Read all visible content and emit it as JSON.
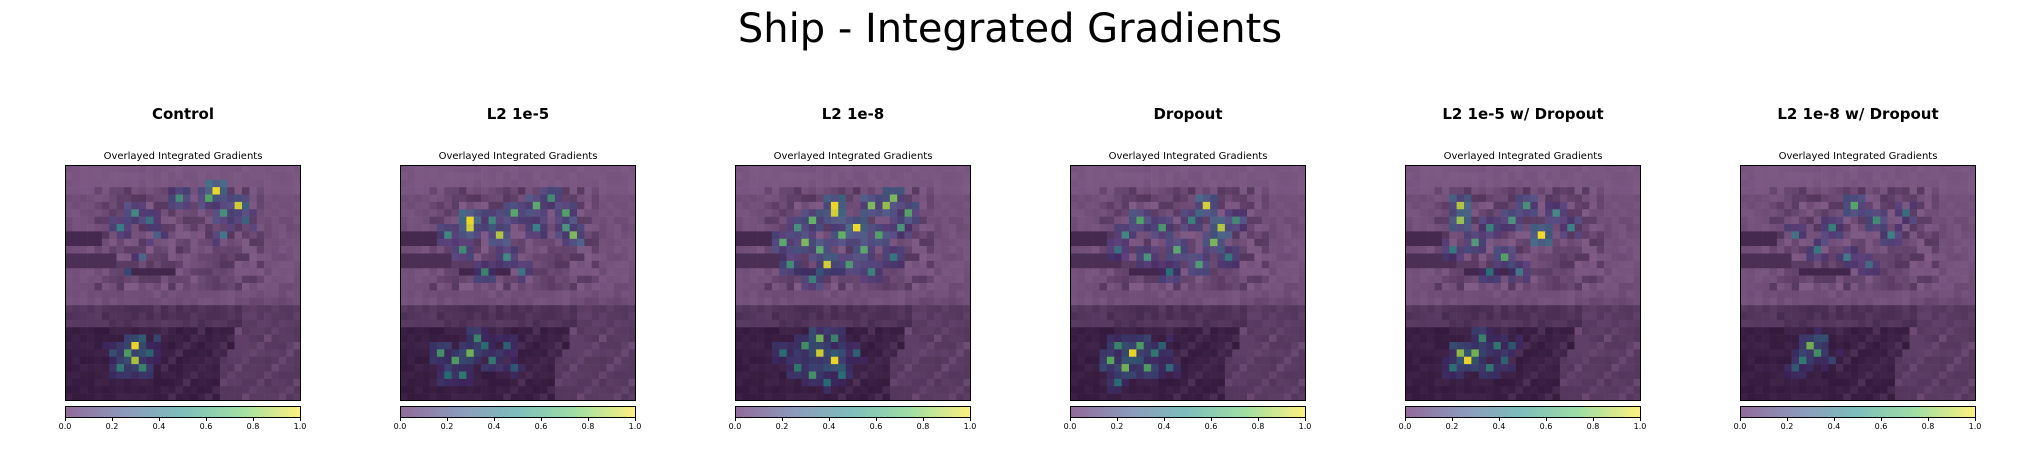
{
  "figure": {
    "title": "Ship - Integrated Gradients"
  },
  "panels": [
    {
      "title": "Control",
      "subtitle": "Overlayed Integrated Gradients",
      "hotspots": [
        [
          20,
          3,
          1.0
        ],
        [
          23,
          5,
          0.95
        ],
        [
          19,
          4,
          0.7
        ],
        [
          15,
          4,
          0.6
        ],
        [
          9,
          6,
          0.55
        ],
        [
          21,
          6,
          0.6
        ],
        [
          11,
          7,
          0.45
        ],
        [
          7,
          8,
          0.5
        ],
        [
          12,
          9,
          0.35
        ],
        [
          10,
          12,
          0.35
        ],
        [
          8,
          14,
          0.3
        ],
        [
          21,
          9,
          0.45
        ],
        [
          24,
          7,
          0.4
        ]
      ]
    },
    {
      "title": "L2 1e-5",
      "subtitle": "Overlayed Integrated Gradients",
      "hotspots": [
        [
          9,
          7,
          1.0
        ],
        [
          9,
          8,
          0.95
        ],
        [
          13,
          9,
          0.9
        ],
        [
          18,
          5,
          0.7
        ],
        [
          22,
          6,
          0.7
        ],
        [
          23,
          9,
          0.8
        ],
        [
          20,
          4,
          0.6
        ],
        [
          15,
          6,
          0.7
        ],
        [
          8,
          11,
          0.6
        ],
        [
          14,
          12,
          0.55
        ],
        [
          11,
          14,
          0.6
        ],
        [
          6,
          9,
          0.55
        ],
        [
          18,
          8,
          0.5
        ],
        [
          12,
          7,
          0.55
        ],
        [
          16,
          14,
          0.45
        ],
        [
          22,
          8,
          0.6
        ]
      ]
    },
    {
      "title": "L2 1e-8",
      "subtitle": "Overlayed Integrated Gradients",
      "hotspots": [
        [
          13,
          5,
          1.0
        ],
        [
          13,
          6,
          0.95
        ],
        [
          16,
          8,
          1.0
        ],
        [
          12,
          13,
          0.95
        ],
        [
          9,
          10,
          0.8
        ],
        [
          18,
          5,
          0.8
        ],
        [
          20,
          5,
          0.85
        ],
        [
          21,
          4,
          0.8
        ],
        [
          23,
          6,
          0.7
        ],
        [
          17,
          11,
          0.7
        ],
        [
          10,
          7,
          0.75
        ],
        [
          14,
          9,
          0.75
        ],
        [
          8,
          8,
          0.6
        ],
        [
          6,
          10,
          0.7
        ],
        [
          11,
          11,
          0.7
        ],
        [
          15,
          13,
          0.65
        ],
        [
          19,
          9,
          0.7
        ],
        [
          22,
          8,
          0.6
        ],
        [
          7,
          13,
          0.6
        ],
        [
          10,
          15,
          0.55
        ],
        [
          18,
          14,
          0.55
        ],
        [
          21,
          12,
          0.5
        ]
      ]
    },
    {
      "title": "Dropout",
      "subtitle": "Overlayed Integrated Gradients",
      "hotspots": [
        [
          18,
          5,
          0.95
        ],
        [
          20,
          8,
          0.9
        ],
        [
          19,
          10,
          0.8
        ],
        [
          17,
          13,
          0.65
        ],
        [
          9,
          7,
          0.7
        ],
        [
          12,
          8,
          0.65
        ],
        [
          14,
          11,
          0.7
        ],
        [
          10,
          12,
          0.6
        ],
        [
          7,
          9,
          0.55
        ],
        [
          16,
          7,
          0.55
        ],
        [
          22,
          7,
          0.6
        ],
        [
          21,
          12,
          0.5
        ],
        [
          13,
          14,
          0.5
        ],
        [
          6,
          11,
          0.45
        ]
      ]
    },
    {
      "title": "L2 1e-5 w/ Dropout",
      "subtitle": "Overlayed Integrated Gradients",
      "hotspots": [
        [
          7,
          5,
          0.9
        ],
        [
          7,
          7,
          0.85
        ],
        [
          18,
          9,
          1.0
        ],
        [
          13,
          12,
          0.7
        ],
        [
          9,
          10,
          0.65
        ],
        [
          14,
          7,
          0.6
        ],
        [
          16,
          5,
          0.6
        ],
        [
          20,
          6,
          0.55
        ],
        [
          11,
          8,
          0.55
        ],
        [
          6,
          11,
          0.5
        ],
        [
          22,
          8,
          0.5
        ],
        [
          15,
          14,
          0.45
        ],
        [
          11,
          14,
          0.5
        ]
      ]
    },
    {
      "title": "L2 1e-8 w/ Dropout",
      "subtitle": "Overlayed Integrated Gradients",
      "hotspots": [
        [
          15,
          5,
          0.7
        ],
        [
          18,
          7,
          0.6
        ],
        [
          12,
          8,
          0.55
        ],
        [
          20,
          9,
          0.5
        ],
        [
          10,
          11,
          0.5
        ],
        [
          14,
          12,
          0.45
        ],
        [
          7,
          9,
          0.45
        ],
        [
          22,
          6,
          0.45
        ],
        [
          17,
          13,
          0.4
        ]
      ]
    }
  ],
  "bottom_hotspots": [
    [
      [
        8,
        25,
        0.7
      ],
      [
        9,
        24,
        1.0
      ],
      [
        9,
        26,
        0.9
      ],
      [
        10,
        27,
        0.6
      ],
      [
        7,
        27,
        0.55
      ],
      [
        11,
        25,
        0.45
      ],
      [
        6,
        25,
        0.35
      ],
      [
        12,
        23,
        0.3
      ]
    ],
    [
      [
        5,
        25,
        0.65
      ],
      [
        7,
        26,
        0.7
      ],
      [
        9,
        25,
        0.8
      ],
      [
        10,
        23,
        0.6
      ],
      [
        8,
        28,
        0.55
      ],
      [
        12,
        26,
        0.55
      ],
      [
        11,
        24,
        0.5
      ],
      [
        14,
        24,
        0.45
      ],
      [
        6,
        28,
        0.5
      ],
      [
        15,
        27,
        0.4
      ]
    ],
    [
      [
        11,
        23,
        0.8
      ],
      [
        11,
        25,
        0.95
      ],
      [
        13,
        26,
        1.0
      ],
      [
        9,
        24,
        0.65
      ],
      [
        10,
        28,
        0.65
      ],
      [
        8,
        27,
        0.55
      ],
      [
        13,
        23,
        0.6
      ],
      [
        14,
        28,
        0.5
      ],
      [
        6,
        25,
        0.5
      ],
      [
        16,
        25,
        0.45
      ],
      [
        12,
        29,
        0.5
      ]
    ],
    [
      [
        5,
        26,
        0.75
      ],
      [
        6,
        24,
        0.6
      ],
      [
        7,
        27,
        0.8
      ],
      [
        8,
        25,
        1.0
      ],
      [
        9,
        24,
        0.7
      ],
      [
        10,
        27,
        0.7
      ],
      [
        11,
        25,
        0.55
      ],
      [
        12,
        24,
        0.45
      ],
      [
        13,
        27,
        0.45
      ],
      [
        6,
        29,
        0.5
      ]
    ],
    [
      [
        7,
        25,
        0.85
      ],
      [
        8,
        26,
        1.0
      ],
      [
        9,
        25,
        0.8
      ],
      [
        10,
        23,
        0.6
      ],
      [
        11,
        27,
        0.55
      ],
      [
        12,
        24,
        0.55
      ],
      [
        6,
        27,
        0.5
      ],
      [
        13,
        26,
        0.45
      ],
      [
        14,
        24,
        0.4
      ]
    ],
    [
      [
        8,
        26,
        0.55
      ],
      [
        9,
        24,
        0.8
      ],
      [
        10,
        25,
        0.65
      ],
      [
        7,
        27,
        0.4
      ],
      [
        11,
        23,
        0.35
      ],
      [
        12,
        26,
        0.3
      ]
    ]
  ],
  "colorbar": {
    "colormap": "viridis",
    "overlay_tint": "#a078a6",
    "ticks": [
      "0.0",
      "0.2",
      "0.4",
      "0.6",
      "0.8",
      "1.0"
    ],
    "tick_values": [
      0.0,
      0.2,
      0.4,
      0.6,
      0.8,
      1.0
    ]
  }
}
